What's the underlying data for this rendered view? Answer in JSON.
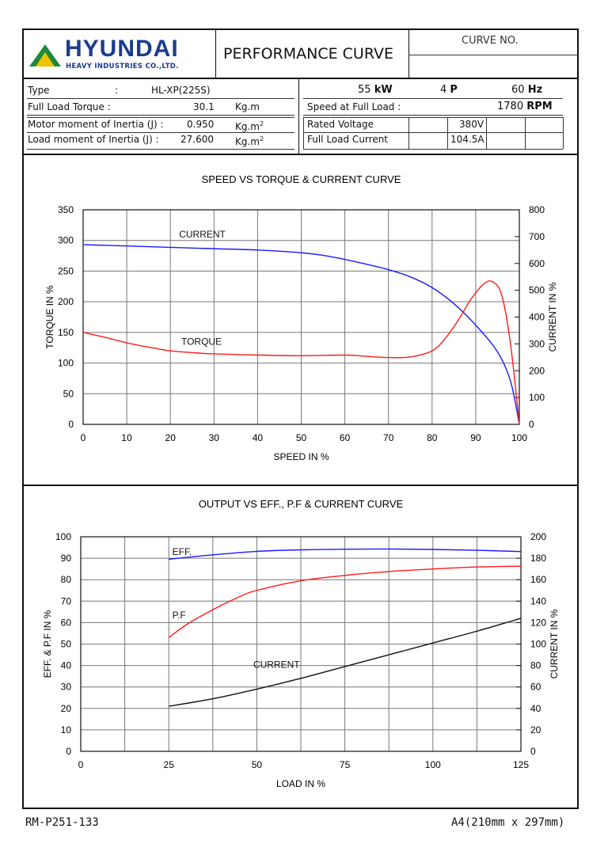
{
  "brand": {
    "name": "HYUNDAI",
    "subtitle": "HEAVY INDUSTRIES CO.,LTD."
  },
  "header": {
    "title": "PERFORMANCE CURVE",
    "curve_no_label": "CURVE NO.",
    "curve_no_value": ""
  },
  "specs_left": {
    "type_label": "Type",
    "type_colon": ":",
    "type_value": "HL-XP(225S)",
    "torque_label": "Full Load Torque :",
    "torque_value": "30.1",
    "torque_unit": "Kg.m",
    "motor_inertia_label": "Motor moment of Inertia (J) :",
    "motor_inertia_value": "0.950",
    "motor_inertia_unit": "Kg.m",
    "load_inertia_label": "Load moment of Inertia (J) :",
    "load_inertia_value": "27.600",
    "load_inertia_unit": "Kg.m",
    "unit_sup": "2"
  },
  "specs_right": {
    "power_value": "55",
    "power_unit": "kW",
    "poles_value": "4",
    "poles_unit": "P",
    "freq_value": "60",
    "freq_unit": "Hz",
    "speed_label": "Speed at Full Load :",
    "speed_value": "1780",
    "speed_unit": "RPM",
    "voltage_label": "Rated Voltage",
    "voltage_value": "380V",
    "current_label": "Full Load Current",
    "current_value": "104.5A"
  },
  "footer": {
    "doc_no": "RM-P251-133",
    "paper": "A4(210mm x 297mm)"
  },
  "colors": {
    "blue": "#1a1aff",
    "red": "#ff1a1a",
    "black": "#111111",
    "grid": "#777777",
    "logo_green": "#1e8a3c",
    "logo_blue": "#1a3d8f"
  },
  "chart_data": [
    {
      "type": "line",
      "title": "SPEED VS TORQUE & CURRENT CURVE",
      "xlabel": "SPEED IN %",
      "ylabel": "TORQUE IN %",
      "y2label": "CURRENT IN %",
      "xlim": [
        0,
        100
      ],
      "ylim": [
        0,
        350
      ],
      "y2lim": [
        0,
        800
      ],
      "xticks": [
        0,
        10,
        20,
        30,
        40,
        50,
        60,
        70,
        80,
        90,
        100
      ],
      "yticks": [
        0,
        50,
        100,
        150,
        200,
        250,
        300,
        350
      ],
      "y2ticks": [
        0,
        100,
        200,
        300,
        400,
        500,
        600,
        700,
        800
      ],
      "xtick_labels": [
        "0",
        "10",
        "20",
        "30",
        "40",
        "50",
        "60",
        "70",
        "80",
        "90",
        "100"
      ],
      "ytick_labels": [
        "0",
        "50",
        "100",
        "150",
        "200",
        "250",
        "300",
        "350"
      ],
      "y2tick_labels": [
        "0",
        "100",
        "200",
        "300",
        "400",
        "500",
        "600",
        "700",
        "800"
      ],
      "series": [
        {
          "name": "CURRENT",
          "axis": "y2",
          "color": "#1a1aff",
          "x": [
            0,
            10,
            20,
            30,
            40,
            50,
            55,
            60,
            65,
            70,
            75,
            80,
            85,
            90,
            95,
            98,
            100
          ],
          "y": [
            670,
            665,
            660,
            655,
            650,
            640,
            630,
            615,
            597,
            577,
            550,
            510,
            450,
            370,
            270,
            160,
            0
          ],
          "label_x": 22,
          "label_y": 697
        },
        {
          "name": "TORQUE",
          "axis": "y",
          "color": "#ff1a1a",
          "x": [
            0,
            5,
            10,
            15,
            20,
            25,
            30,
            40,
            50,
            60,
            65,
            70,
            75,
            80,
            83,
            86,
            89,
            92,
            94,
            96,
            98,
            100
          ],
          "y": [
            150,
            142,
            133,
            126,
            120,
            117,
            115,
            113,
            112,
            113,
            111,
            109,
            110,
            120,
            140,
            170,
            205,
            230,
            232,
            210,
            130,
            0
          ],
          "label_x": 22.5,
          "label_y": 130
        }
      ]
    },
    {
      "type": "line",
      "title": "OUTPUT VS EFF., P.F & CURRENT CURVE",
      "xlabel": "LOAD IN %",
      "ylabel": "EFF. & P.F IN %",
      "y2label": "CURRENT IN %",
      "xlim": [
        0,
        125
      ],
      "ylim": [
        0,
        100
      ],
      "y2lim": [
        0,
        200
      ],
      "xticks": [
        0,
        25,
        50,
        75,
        100,
        125
      ],
      "yticks": [
        0,
        10,
        20,
        30,
        40,
        50,
        60,
        70,
        80,
        90,
        100
      ],
      "y2ticks": [
        0,
        20,
        40,
        60,
        80,
        100,
        120,
        140,
        160,
        180,
        200
      ],
      "xtick_labels": [
        "0",
        "25",
        "50",
        "75",
        "100",
        "125"
      ],
      "ytick_labels": [
        "0",
        "10",
        "20",
        "30",
        "40",
        "50",
        "60",
        "70",
        "80",
        "90",
        "100"
      ],
      "y2tick_labels": [
        "0",
        "20",
        "40",
        "60",
        "80",
        "100",
        "120",
        "140",
        "160",
        "180",
        "200"
      ],
      "series": [
        {
          "name": "EFF.",
          "axis": "y",
          "color": "#1a1aff",
          "x": [
            25,
            35,
            50,
            62.5,
            75,
            87.5,
            100,
            112.5,
            125
          ],
          "y": [
            89.5,
            91.2,
            93.2,
            93.9,
            94.2,
            94.3,
            94.1,
            93.7,
            93.1
          ],
          "label_x": 26,
          "label_y": 91.5
        },
        {
          "name": "P.F",
          "axis": "y",
          "color": "#ff1a1a",
          "x": [
            25,
            30,
            37.5,
            45,
            50,
            62.5,
            75,
            87.5,
            100,
            112.5,
            125
          ],
          "y": [
            53,
            59,
            66,
            72,
            75,
            79.5,
            82,
            83.8,
            85,
            85.9,
            86.3
          ],
          "label_x": 26,
          "label_y": 62
        },
        {
          "name": "CURRENT",
          "axis": "y2",
          "color": "#111111",
          "x": [
            25,
            37.5,
            50,
            62.5,
            75,
            87.5,
            100,
            112.5,
            125
          ],
          "y": [
            42,
            49,
            58,
            68,
            79,
            90,
            101,
            112,
            124
          ],
          "label_x": 49,
          "label_y": 78
        }
      ]
    }
  ]
}
